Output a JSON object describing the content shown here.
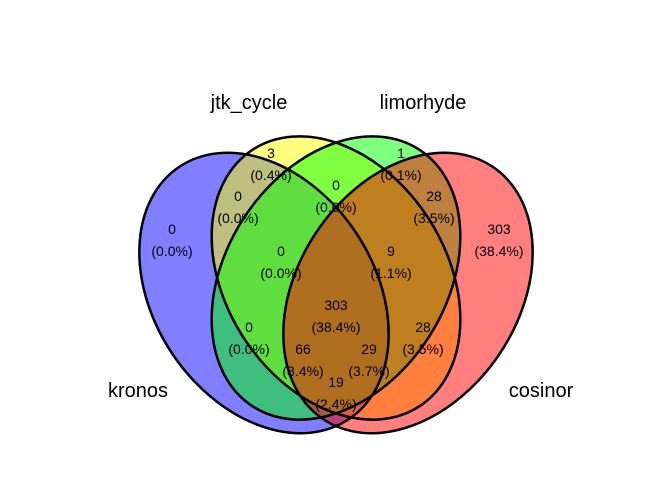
{
  "sets": [
    {
      "key": "kronos",
      "label": "kronos",
      "color": "#0000FF"
    },
    {
      "key": "jtk",
      "label": "jtk_cycle",
      "color": "#FFFF00"
    },
    {
      "key": "limorhyde",
      "label": "limorhyde",
      "color": "#00FF00"
    },
    {
      "key": "cosinor",
      "label": "cosinor",
      "color": "#FF0000"
    }
  ],
  "regions": {
    "jtk_only": {
      "count": "3",
      "percent": "(0.4%)"
    },
    "limorhyde_only": {
      "count": "1",
      "percent": "(0.1%)"
    },
    "kronos_only": {
      "count": "0",
      "percent": "(0.0%)"
    },
    "cosinor_only": {
      "count": "303",
      "percent": "(38.4%)"
    },
    "kronos_jtk": {
      "count": "0",
      "percent": "(0.0%)"
    },
    "jtk_limorhyde": {
      "count": "0",
      "percent": "(0.0%)"
    },
    "limorhyde_cosinor": {
      "count": "28",
      "percent": "(3.5%)"
    },
    "kronos_jtk_limorhyde": {
      "count": "0",
      "percent": "(0.0%)"
    },
    "jtk_limorhyde_cosinor": {
      "count": "9",
      "percent": "(1.1%)"
    },
    "all_four": {
      "count": "303",
      "percent": "(38.4%)"
    },
    "kronos_limorhyde": {
      "count": "0",
      "percent": "(0.0%)"
    },
    "jtk_cosinor": {
      "count": "28",
      "percent": "(3.5%)"
    },
    "kronos_limorhyde_cosinor": {
      "count": "66",
      "percent": "(8.4%)"
    },
    "kronos_jtk_cosinor": {
      "count": "29",
      "percent": "(3.7%)"
    },
    "kronos_cosinor": {
      "count": "19",
      "percent": "(2.4%)"
    }
  }
}
